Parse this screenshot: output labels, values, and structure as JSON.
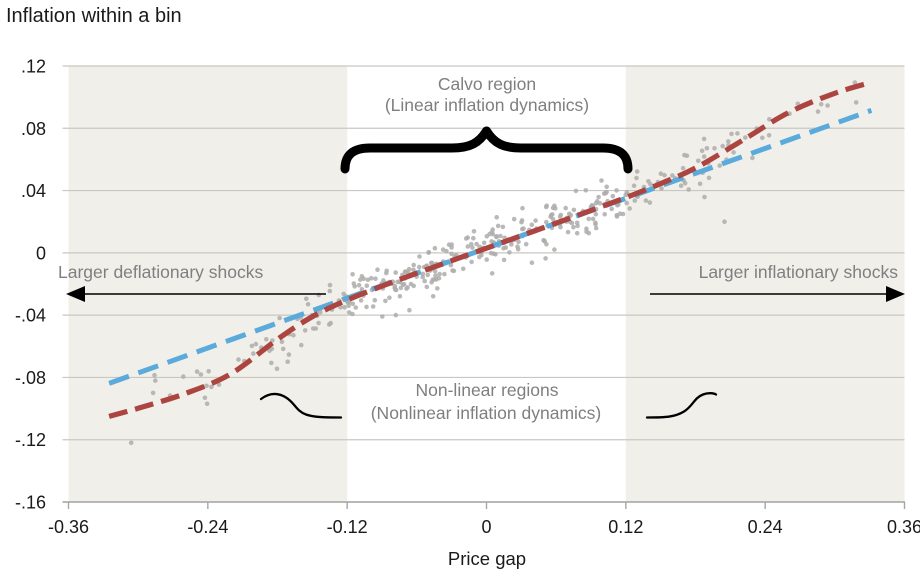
{
  "title": "Inflation within a bin",
  "chart_data": {
    "type": "scatter",
    "title": "Inflation within a bin",
    "xlabel": "Price gap",
    "ylabel": "Inflation within a bin",
    "xlim": [
      -0.36,
      0.36
    ],
    "ylim": [
      -0.16,
      0.12
    ],
    "x_ticks": [
      -0.36,
      -0.24,
      -0.12,
      0,
      0.12,
      0.24,
      0.36
    ],
    "x_tick_labels": [
      "-0.36",
      "-0.24",
      "-0.12",
      "0",
      "0.12",
      "0.24",
      "0.36"
    ],
    "y_ticks": [
      0.12,
      0.08,
      0.04,
      0,
      -0.04,
      -0.08,
      -0.12,
      -0.16
    ],
    "y_tick_labels": [
      ".12",
      ".08",
      ".04",
      "0",
      "-.04",
      "-.08",
      "-.12",
      "-.16"
    ],
    "grid": "horizontal-only",
    "legend": "none",
    "shaded_bands": [
      {
        "name": "nonlinear-region-left",
        "x0": -0.36,
        "x1": -0.12
      },
      {
        "name": "nonlinear-region-right",
        "x0": 0.12,
        "x1": 0.36
      }
    ],
    "series": [
      {
        "name": "linear-fit-line",
        "type": "line",
        "style": "dashed",
        "color": "#5aaadc",
        "points": [
          [
            -0.325,
            -0.0838
          ],
          [
            0.3315,
            0.0915
          ]
        ]
      },
      {
        "name": "nonlinear-fit-line",
        "type": "line",
        "style": "dashed",
        "color": "#ac4540",
        "points": [
          [
            -0.325,
            -0.105
          ],
          [
            -0.3,
            -0.0998
          ],
          [
            -0.26,
            -0.0905
          ],
          [
            -0.22,
            -0.0776
          ],
          [
            -0.18,
            -0.0555
          ],
          [
            -0.15,
            -0.041
          ],
          [
            -0.12,
            -0.0303
          ],
          [
            -0.08,
            -0.0185
          ],
          [
            -0.04,
            -0.0077
          ],
          [
            0,
            0.003
          ],
          [
            0.04,
            0.0137
          ],
          [
            0.08,
            0.0245
          ],
          [
            0.12,
            0.0355
          ],
          [
            0.15,
            0.0445
          ],
          [
            0.18,
            0.0545
          ],
          [
            0.22,
            0.072
          ],
          [
            0.26,
            0.09
          ],
          [
            0.3,
            0.1025
          ],
          [
            0.3315,
            0.1095
          ]
        ]
      },
      {
        "name": "binned-inflation-observations",
        "type": "scatter",
        "color": "#aeadab",
        "marker_radius": 2.3,
        "follows": "nonlinear-fit-line",
        "generator": {
          "seed": 11,
          "count": 400,
          "x_sd": 0.125,
          "x_min": -0.318,
          "x_max": 0.333,
          "y_noise_sd": 0.0075,
          "y_noise_max": 0.022
        },
        "outliers": [
          [
            -0.306,
            -0.122
          ],
          [
            0.205,
            0.02
          ]
        ]
      }
    ],
    "colors": {
      "band": "#f0efe9",
      "gridline": "#c9c7c2",
      "axis": "#a6a6a6",
      "tick_text": "#1a1a1a",
      "annotation_text": "#7f7f7f",
      "annotation_shapes": "#000000"
    }
  },
  "annotations": {
    "calvo_region_line1": "Calvo region",
    "calvo_region_line2": "(Linear inflation dynamics)",
    "left_shock_label": "Larger deflationary shocks",
    "right_shock_label": "Larger inflationary shocks",
    "nonlinear_line1": "Non-linear regions",
    "nonlinear_line2": "(Nonlinear inflation dynamics)"
  }
}
